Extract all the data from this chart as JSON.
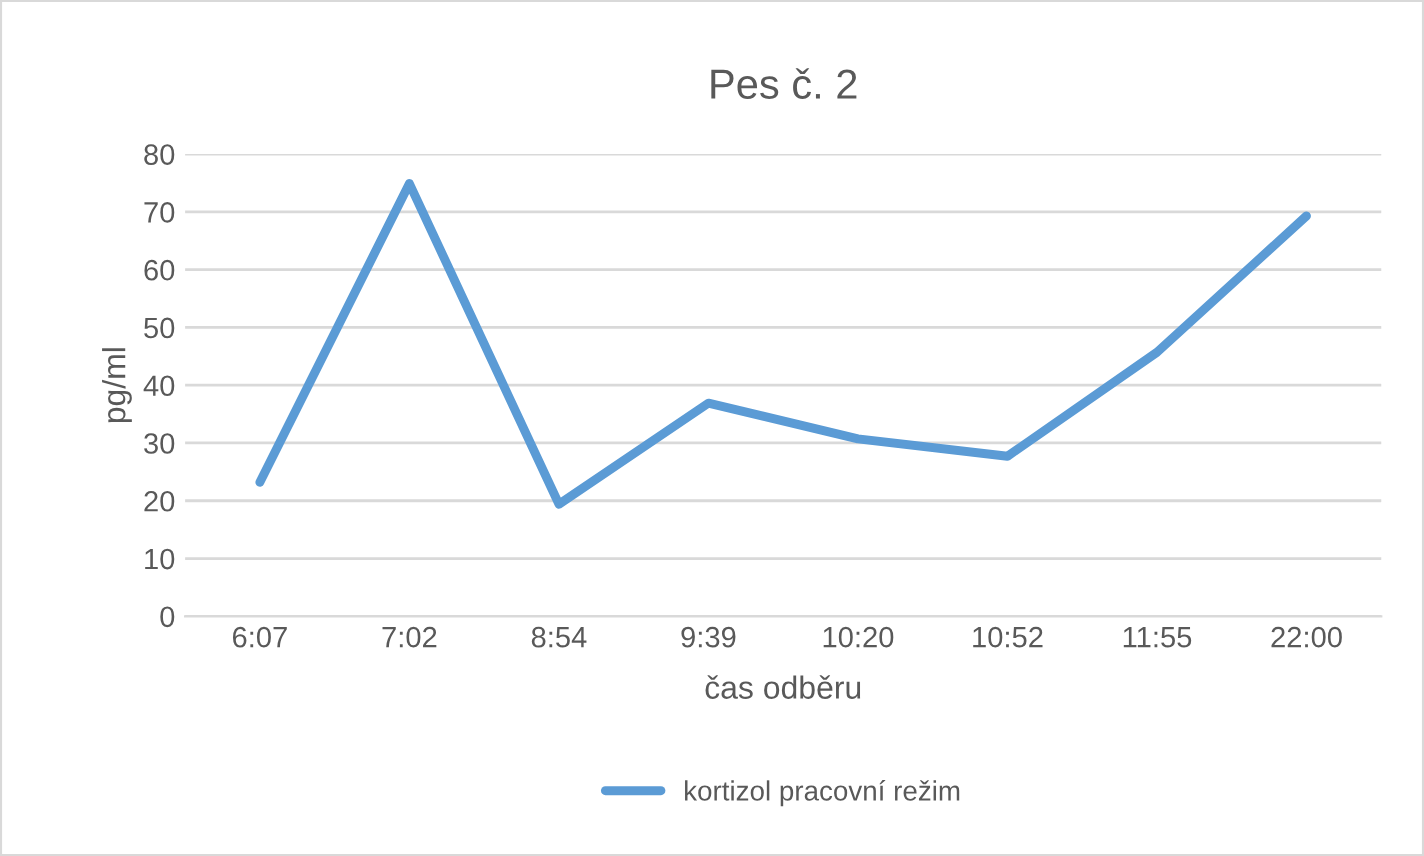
{
  "chart_data": {
    "type": "line",
    "title": "Pes č. 2",
    "xlabel": "čas odběru",
    "ylabel": "pg/ml",
    "categories": [
      "6:07",
      "7:02",
      "8:54",
      "9:39",
      "10:20",
      "10:52",
      "11:55",
      "22:00"
    ],
    "series": [
      {
        "name": "kortizol pracovní režim",
        "color": "#5b9bd5",
        "values": [
          23.2,
          74.9,
          19.4,
          36.9,
          30.7,
          27.7,
          45.7,
          69.3
        ]
      }
    ],
    "ylim": [
      0,
      80
    ],
    "yticks": [
      0,
      10,
      20,
      30,
      40,
      50,
      60,
      70,
      80
    ],
    "grid": "y",
    "legend": "bottom",
    "marker": "none",
    "line_style": "solid"
  }
}
